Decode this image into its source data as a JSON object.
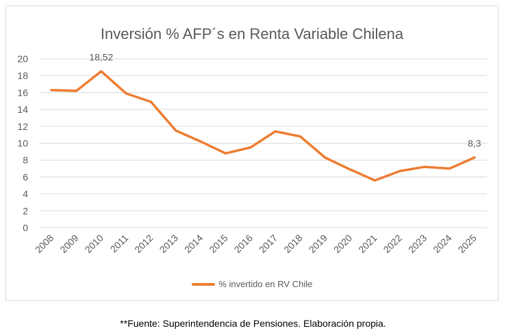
{
  "chart_data": {
    "type": "line",
    "title": "Inversión % AFP´s en Renta Variable Chilena",
    "xlabel": "",
    "ylabel": "",
    "ylim": [
      0,
      20
    ],
    "yticks": [
      "0",
      "2",
      "4",
      "6",
      "8",
      "10",
      "12",
      "14",
      "16",
      "18",
      "20"
    ],
    "categories": [
      "2008",
      "2009",
      "2010",
      "2011",
      "2012",
      "2013",
      "2014",
      "2015",
      "2016",
      "2017",
      "2018",
      "2019",
      "2020",
      "2021",
      "2022",
      "2023",
      "2024",
      "2025"
    ],
    "series": [
      {
        "name": "% invertido en RV Chile",
        "color": "#ed7d31",
        "values": [
          16.3,
          16.2,
          18.52,
          15.9,
          14.9,
          11.5,
          10.2,
          8.8,
          9.5,
          11.4,
          10.8,
          8.3,
          6.9,
          5.6,
          6.7,
          7.2,
          7.0,
          8.3
        ]
      }
    ],
    "data_labels": [
      {
        "category": "2010",
        "text": "18,52"
      },
      {
        "category": "2025",
        "text": "8,3"
      }
    ],
    "grid": "horizontal",
    "legend_position": "bottom",
    "gridline_color": "#d9d9d9",
    "axis_text_color": "#595959"
  },
  "source_note": "**Fuente: Superintendencia de Pensiones. Elaboración propia."
}
